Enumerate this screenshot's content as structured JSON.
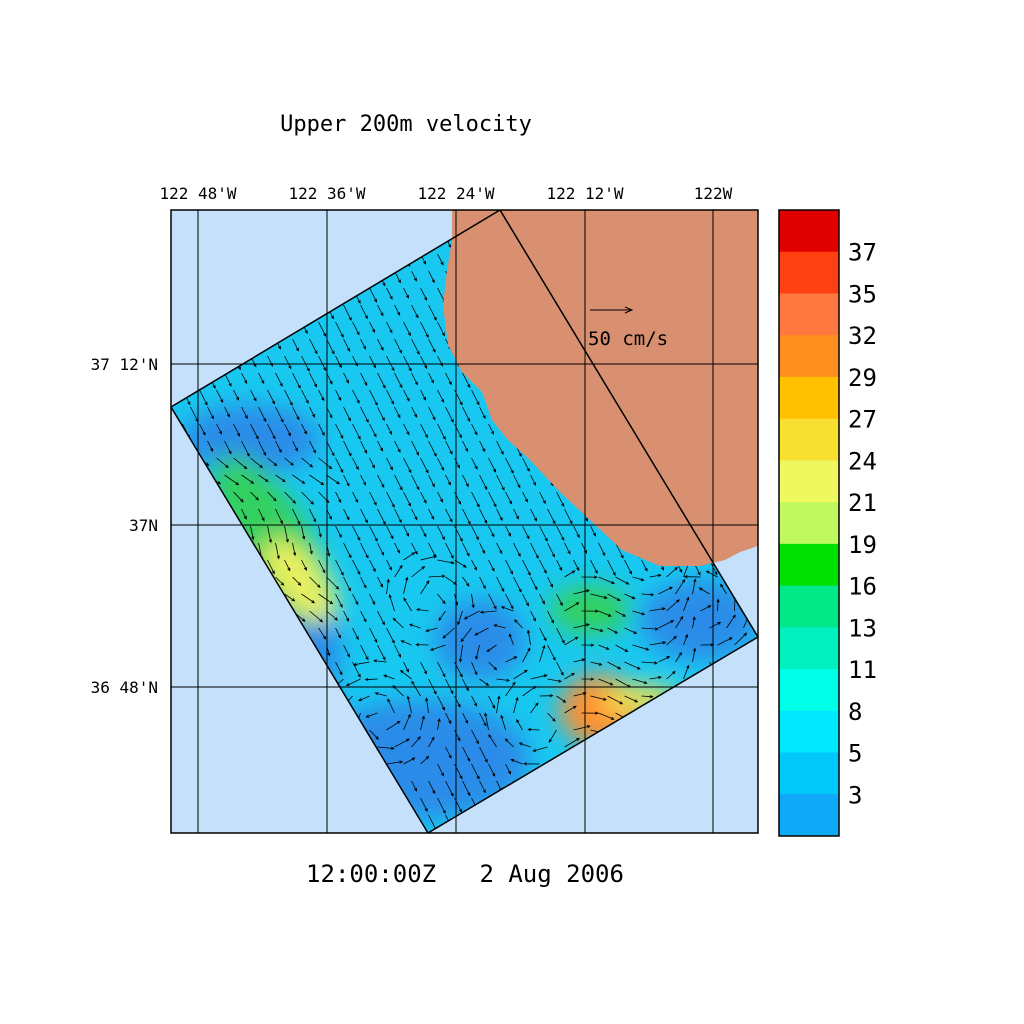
{
  "title": "Upper 200m velocity",
  "longitude_labels": [
    "122 48'W",
    "122 36'W",
    "122 24'W",
    "122 12'W",
    "122W"
  ],
  "latitude_labels": [
    "37 12'N",
    "37N",
    "36 48'N"
  ],
  "timestamp": "12:00:00Z   2 Aug 2006",
  "scale_label": "50 cm/s",
  "colorbar": {
    "labels": [
      37,
      35,
      32,
      29,
      27,
      24,
      21,
      19,
      16,
      13,
      11,
      8,
      5,
      3
    ],
    "colors": [
      "#e00000",
      "#ff4010",
      "#ff7840",
      "#ff9020",
      "#ffc000",
      "#f8e030",
      "#f0f860",
      "#c0f860",
      "#00e000",
      "#00e888",
      "#00f0c0",
      "#00ffe8",
      "#00e8ff",
      "#00c8f8",
      "#10a8f8"
    ]
  }
}
